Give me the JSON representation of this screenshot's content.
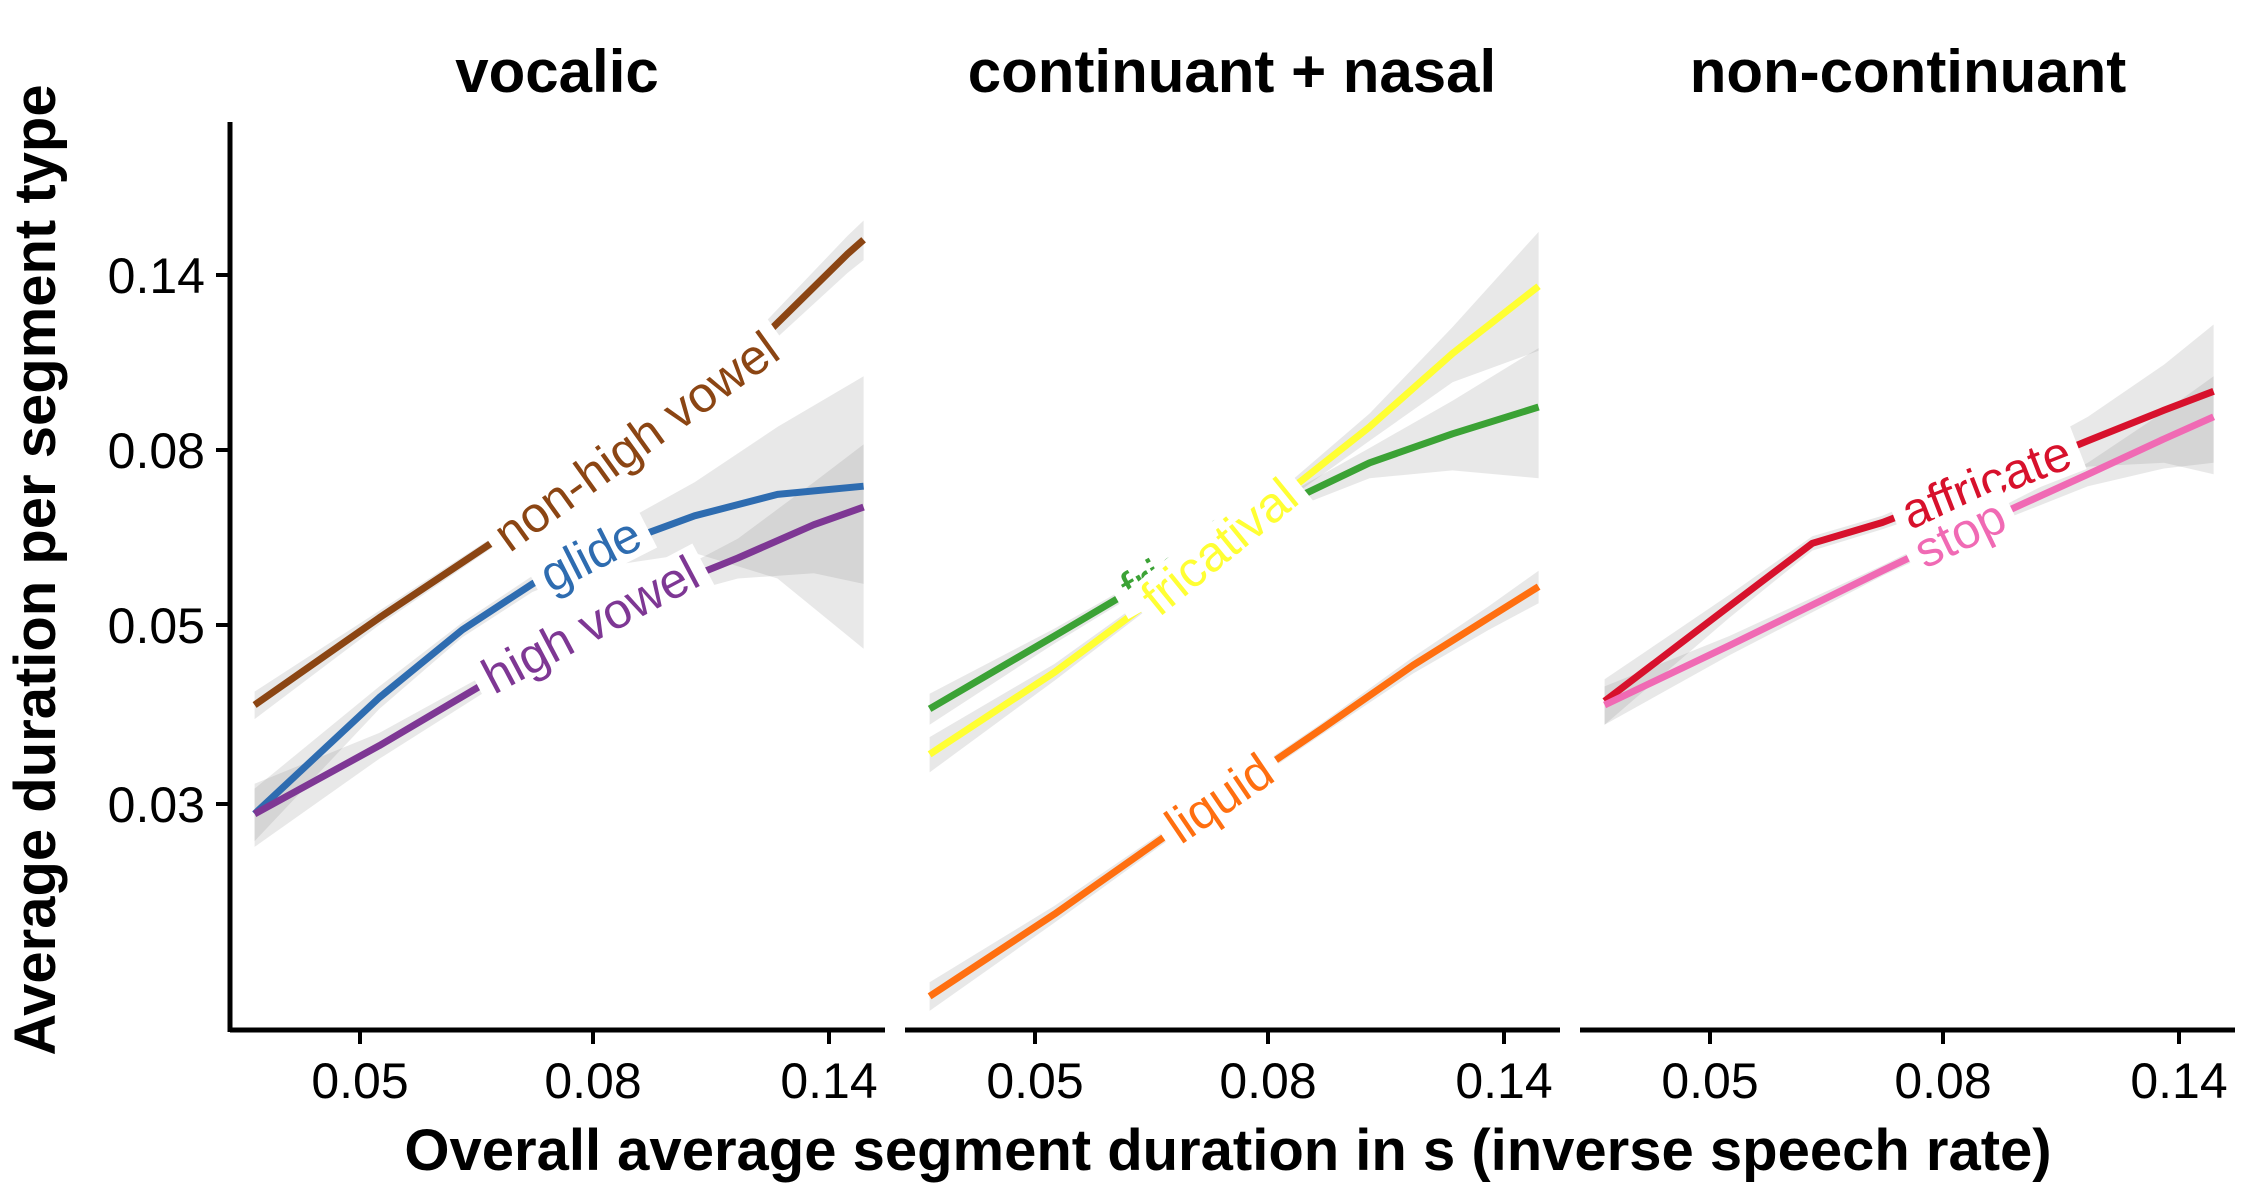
{
  "chart_data": {
    "type": "line",
    "xlabel": "Overall average segment duration in s (inverse speech rate)",
    "ylabel": "Average duration per segment type",
    "x_scale": "log",
    "y_scale": "log",
    "x_ticks": [
      "0.05",
      "0.08",
      "0.14"
    ],
    "y_ticks": [
      "0.03",
      "0.05",
      "0.08",
      "0.14"
    ],
    "xlim": [
      0.036,
      0.152
    ],
    "ylim": [
      0.0175,
      0.245
    ],
    "grid": false,
    "legend": "direct labels on lines",
    "panels": [
      {
        "title": "vocalic",
        "series": [
          {
            "name": "non-high vowel",
            "color": "#8B4513",
            "x": [
              0.038,
              0.05,
              0.07,
              0.09,
              0.11,
              0.14,
              0.145
            ],
            "y": [
              0.045,
              0.058,
              0.078,
              0.099,
              0.122,
              0.167,
              0.174
            ],
            "ci_halfwidth": [
              0.0018,
              0.0012,
              0.001,
              0.0015,
              0.004,
              0.009,
              0.01
            ]
          },
          {
            "name": "glide",
            "color": "#2E6CB0",
            "x": [
              0.038,
              0.05,
              0.06,
              0.07,
              0.08,
              0.1,
              0.12,
              0.145
            ],
            "y": [
              0.0328,
              0.046,
              0.056,
              0.064,
              0.07,
              0.078,
              0.083,
              0.085
            ],
            "ci_halfwidth": [
              0.0025,
              0.0015,
              0.0012,
              0.0015,
              0.003,
              0.008,
              0.018,
              0.032
            ]
          },
          {
            "name": "high vowel",
            "color": "#7E3794",
            "x": [
              0.038,
              0.05,
              0.07,
              0.09,
              0.11,
              0.13,
              0.145
            ],
            "y": [
              0.0328,
              0.04,
              0.052,
              0.062,
              0.069,
              0.076,
              0.08
            ],
            "ci_halfwidth": [
              0.003,
              0.0015,
              0.001,
              0.0015,
              0.004,
              0.01,
              0.016
            ]
          }
        ]
      },
      {
        "title": "continuant + nasal",
        "series": [
          {
            "name": "fricative",
            "color": "#3BA235",
            "x": [
              0.038,
              0.05,
              0.065,
              0.08,
              0.1,
              0.12,
              0.145
            ],
            "y": [
              0.0445,
              0.055,
              0.0675,
              0.079,
              0.091,
              0.099,
              0.107
            ],
            "ci_halfwidth": [
              0.002,
              0.0012,
              0.001,
              0.0015,
              0.004,
              0.01,
              0.02
            ]
          },
          {
            "name": "fricatival",
            "color": "#FFFF33",
            "x": [
              0.038,
              0.05,
              0.065,
              0.08,
              0.1,
              0.12,
              0.145
            ],
            "y": [
              0.039,
              0.0495,
              0.064,
              0.08,
              0.101,
              0.125,
              0.152
            ],
            "ci_halfwidth": [
              0.002,
              0.0012,
              0.001,
              0.0015,
              0.004,
              0.01,
              0.026
            ]
          },
          {
            "name": "liquid",
            "color": "#FF6F10",
            "x": [
              0.038,
              0.05,
              0.07,
              0.09,
              0.11,
              0.13,
              0.145
            ],
            "y": [
              0.0193,
              0.0245,
              0.0335,
              0.042,
              0.0505,
              0.058,
              0.0635
            ],
            "ci_halfwidth": [
              0.0008,
              0.0006,
              0.0005,
              0.0007,
              0.0012,
              0.002,
              0.003
            ]
          }
        ]
      },
      {
        "title": "non-continuant",
        "series": [
          {
            "name": "affricate",
            "color": "#D7112C",
            "x": [
              0.038,
              0.05,
              0.06,
              0.07,
              0.09,
              0.11,
              0.13,
              0.145
            ],
            "y": [
              0.0455,
              0.06,
              0.072,
              0.0765,
              0.087,
              0.097,
              0.106,
              0.112
            ],
            "ci_halfwidth": [
              0.003,
              0.002,
              0.0015,
              0.0015,
              0.003,
              0.007,
              0.015,
              0.024
            ]
          },
          {
            "name": "stop",
            "color": "#F06AB4",
            "x": [
              0.038,
              0.05,
              0.07,
              0.09,
              0.11,
              0.13,
              0.145
            ],
            "y": [
              0.045,
              0.0535,
              0.0665,
              0.078,
              0.088,
              0.0975,
              0.104
            ],
            "ci_halfwidth": [
              0.0025,
              0.0015,
              0.001,
              0.0015,
              0.003,
              0.008,
              0.013
            ]
          }
        ]
      }
    ]
  }
}
